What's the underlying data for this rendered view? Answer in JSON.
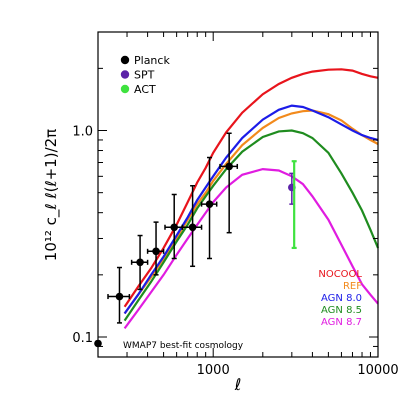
{
  "chart_data": {
    "type": "line",
    "xlabel": "ℓ",
    "ylabel": "10¹² c_ℓ ℓ(ℓ+1)/2π",
    "xscale": "log",
    "yscale": "log",
    "xlim": [
      200,
      10000
    ],
    "ylim": [
      0.08,
      3.0
    ],
    "x_ticks": [
      {
        "value": 1000,
        "label": "1000"
      },
      {
        "value": 10000,
        "label": "10000"
      }
    ],
    "y_ticks": [
      {
        "value": 0.1,
        "label": "0.1"
      },
      {
        "value": 1.0,
        "label": "1.0"
      }
    ],
    "legend_position": "top-left",
    "annotation": "WMAP7 best-fit cosmology",
    "series": [
      {
        "name": "NOCOOL",
        "color": "#e8141c",
        "x": [
          290,
          350,
          420,
          500,
          600,
          700,
          800,
          900,
          1000,
          1200,
          1500,
          2000,
          2500,
          3000,
          3500,
          4000,
          5000,
          6000,
          7000,
          8000,
          9000,
          10000
        ],
        "y": [
          0.14,
          0.175,
          0.215,
          0.27,
          0.35,
          0.45,
          0.56,
          0.66,
          0.78,
          0.98,
          1.22,
          1.5,
          1.68,
          1.8,
          1.88,
          1.93,
          1.97,
          1.98,
          1.95,
          1.88,
          1.83,
          1.8
        ]
      },
      {
        "name": "REF",
        "color": "#f28a1c",
        "x": [
          290,
          350,
          420,
          500,
          600,
          700,
          800,
          900,
          1000,
          1200,
          1500,
          2000,
          2500,
          3000,
          3500,
          4000,
          5000,
          6000,
          7000,
          8000,
          9000,
          10000
        ],
        "y": [
          0.13,
          0.16,
          0.195,
          0.24,
          0.3,
          0.37,
          0.44,
          0.5,
          0.57,
          0.69,
          0.85,
          1.03,
          1.15,
          1.21,
          1.24,
          1.25,
          1.2,
          1.12,
          1.02,
          0.95,
          0.9,
          0.86
        ]
      },
      {
        "name": "AGN 8.0",
        "color": "#1c1ce8",
        "x": [
          290,
          350,
          420,
          500,
          600,
          700,
          800,
          900,
          1000,
          1200,
          1500,
          2000,
          2500,
          3000,
          3500,
          4000,
          5000,
          6000,
          7000,
          8000,
          9000,
          10000
        ],
        "y": [
          0.13,
          0.16,
          0.2,
          0.245,
          0.31,
          0.38,
          0.46,
          0.53,
          0.6,
          0.74,
          0.92,
          1.13,
          1.26,
          1.32,
          1.3,
          1.25,
          1.16,
          1.07,
          1.0,
          0.95,
          0.92,
          0.9
        ]
      },
      {
        "name": "AGN 8.5",
        "color": "#1f8c1f",
        "x": [
          290,
          350,
          420,
          500,
          600,
          700,
          800,
          900,
          1000,
          1200,
          1500,
          2000,
          2500,
          3000,
          3500,
          4000,
          5000,
          6000,
          7000,
          8000,
          9000,
          10000
        ],
        "y": [
          0.12,
          0.15,
          0.185,
          0.23,
          0.29,
          0.35,
          0.42,
          0.48,
          0.54,
          0.65,
          0.79,
          0.93,
          0.99,
          1.0,
          0.97,
          0.92,
          0.78,
          0.62,
          0.5,
          0.41,
          0.33,
          0.27
        ]
      },
      {
        "name": "AGN 8.7",
        "color": "#e01ce0",
        "x": [
          290,
          350,
          420,
          500,
          600,
          700,
          800,
          900,
          1000,
          1200,
          1500,
          2000,
          2500,
          3000,
          3500,
          4000,
          5000,
          6000,
          7000,
          8000,
          9000,
          10000
        ],
        "y": [
          0.11,
          0.135,
          0.165,
          0.2,
          0.25,
          0.3,
          0.35,
          0.4,
          0.45,
          0.53,
          0.61,
          0.65,
          0.64,
          0.6,
          0.55,
          0.48,
          0.37,
          0.28,
          0.22,
          0.18,
          0.16,
          0.145
        ]
      }
    ],
    "data_points": [
      {
        "name": "Planck",
        "color": "#000000",
        "points": [
          {
            "x": 200,
            "y": 0.093,
            "xerr": [
              0,
              0
            ],
            "yerr": [
              0,
              0
            ]
          },
          {
            "x": 270,
            "y": 0.157,
            "xerr": [
              40,
              40
            ],
            "yerr": [
              0.04,
              0.06
            ]
          },
          {
            "x": 360,
            "y": 0.23,
            "xerr": [
              40,
              40
            ],
            "yerr": [
              0.06,
              0.08
            ]
          },
          {
            "x": 450,
            "y": 0.26,
            "xerr": [
              50,
              50
            ],
            "yerr": [
              0.06,
              0.1
            ]
          },
          {
            "x": 580,
            "y": 0.34,
            "xerr": [
              70,
              70
            ],
            "yerr": [
              0.1,
              0.15
            ]
          },
          {
            "x": 750,
            "y": 0.34,
            "xerr": [
              100,
              100
            ],
            "yerr": [
              0.12,
              0.2
            ]
          },
          {
            "x": 950,
            "y": 0.44,
            "xerr": [
              100,
              100
            ],
            "yerr": [
              0.2,
              0.3
            ]
          },
          {
            "x": 1250,
            "y": 0.67,
            "xerr": [
              150,
              150
            ],
            "yerr": [
              0.35,
              0.3
            ]
          }
        ]
      },
      {
        "name": "SPT",
        "color": "#5b22a8",
        "points": [
          {
            "x": 3000,
            "y": 0.53,
            "xerr": [
              0,
              0
            ],
            "yerr": [
              0.09,
              0.09
            ]
          }
        ]
      },
      {
        "name": "ACT",
        "color": "#3fe23f",
        "points": [
          {
            "x": 3100,
            "y": 0.49,
            "xerr": [
              0,
              0
            ],
            "yerr": [
              0.22,
              0.22
            ]
          }
        ]
      }
    ]
  }
}
